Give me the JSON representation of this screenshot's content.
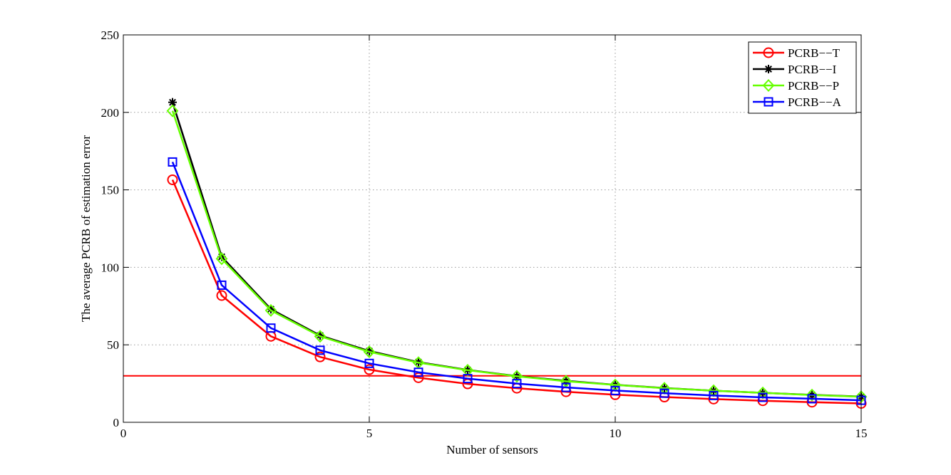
{
  "chart_data": {
    "type": "line",
    "xlabel": "Number of sensors",
    "ylabel": "The average PCRB of estimation error",
    "xlim": [
      0,
      15
    ],
    "ylim": [
      0,
      250
    ],
    "xticks": [
      0,
      5,
      10,
      15
    ],
    "yticks": [
      0,
      50,
      100,
      150,
      200,
      250
    ],
    "grid": true,
    "legend_position": "top-right",
    "x": [
      1,
      2,
      3,
      4,
      5,
      6,
      7,
      8,
      9,
      10,
      11,
      12,
      13,
      14,
      15
    ],
    "series": [
      {
        "name": "PCRB−−T",
        "color": "#ff0000",
        "marker": "circle",
        "values": [
          156.5,
          81.8,
          55.5,
          42.2,
          34.0,
          28.8,
          24.8,
          22.0,
          19.7,
          17.8,
          16.3,
          15.0,
          13.9,
          13.0,
          12.2
        ]
      },
      {
        "name": "PCRB−−I",
        "color": "#000000",
        "marker": "asterisk",
        "values": [
          206.5,
          106.8,
          73.0,
          56.0,
          46.0,
          38.8,
          33.8,
          29.8,
          26.8,
          24.2,
          22.1,
          20.4,
          19.0,
          17.7,
          16.6
        ]
      },
      {
        "name": "PCRB−−P",
        "color": "#66ff00",
        "marker": "diamond",
        "values": [
          201.0,
          105.5,
          72.2,
          55.5,
          45.5,
          38.5,
          33.6,
          29.7,
          26.5,
          24.1,
          22.0,
          20.4,
          19.0,
          17.6,
          16.5
        ]
      },
      {
        "name": "PCRB−−A",
        "color": "#0000ff",
        "marker": "square",
        "values": [
          168.0,
          88.5,
          60.8,
          46.5,
          38.0,
          32.3,
          28.2,
          25.0,
          22.5,
          20.5,
          18.8,
          17.3,
          16.1,
          15.2,
          14.2
        ]
      }
    ],
    "threshold": {
      "y": 30,
      "color": "#ff0000"
    }
  }
}
